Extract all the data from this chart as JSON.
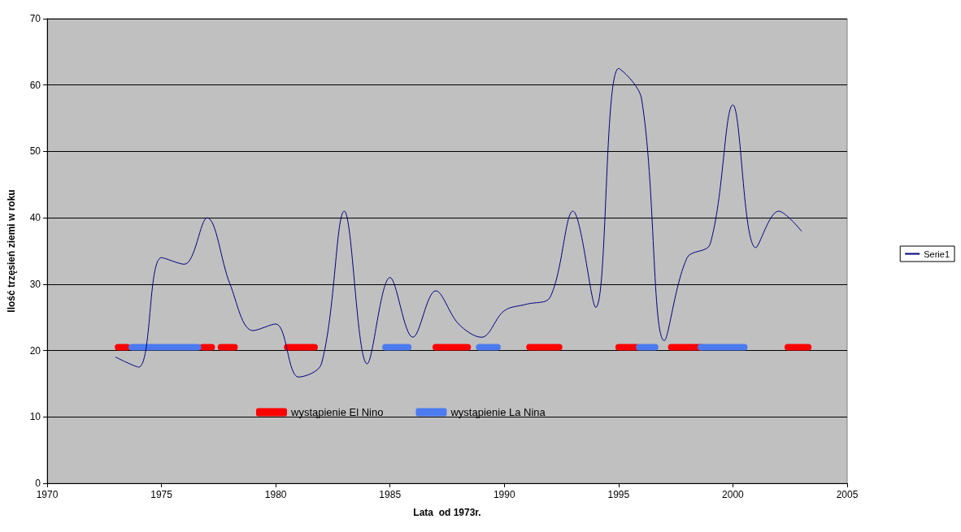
{
  "chart_data": {
    "type": "line",
    "xlabel": "Lata  od 1973r.",
    "ylabel": "Ilość trzęsień ziemi w roku",
    "xlim": [
      1970,
      2005
    ],
    "xticks": [
      1970,
      1975,
      1980,
      1985,
      1990,
      1995,
      2000,
      2005
    ],
    "ylim": [
      0,
      70
    ],
    "yticks": [
      0,
      10,
      20,
      30,
      40,
      50,
      60,
      70
    ],
    "grid": "y",
    "legend": "right",
    "marker": "none",
    "line_style": "solid",
    "x": [
      1973,
      1974,
      1975,
      1976,
      1977,
      1978,
      1979,
      1980,
      1981,
      1982,
      1983,
      1984,
      1985,
      1986,
      1987,
      1988,
      1989,
      1990,
      1991,
      1992,
      1993,
      1994,
      1995,
      1996,
      1997,
      1998,
      1999,
      2000,
      2001,
      2002,
      2003
    ],
    "series": [
      {
        "name": "Serie1",
        "color": "#000080",
        "values": [
          19,
          17.5,
          34,
          33,
          40,
          30,
          23,
          24,
          16,
          18,
          41,
          18,
          31,
          22,
          29,
          24,
          22,
          26,
          27,
          28,
          41,
          26.5,
          62.5,
          58,
          21.5,
          34,
          36,
          57,
          35.5,
          41,
          38
        ]
      },
      {
        "name": "wystąpienie El Nino",
        "color": "#ff0000",
        "x": [
          1973.1,
          1973.5,
          1975,
          1976.8,
          1977.2,
          1977.4,
          1977.6,
          1978.2,
          1979,
          1980.5,
          1981.7,
          1984,
          1987,
          1988.4,
          1990,
          1991.1,
          1992.4,
          1994,
          1995,
          1995.8,
          1996.5,
          1997.3,
          1998.6,
          2000,
          2002.4,
          2003.3
        ],
        "values": [
          20.5,
          20.5,
          null,
          20.5,
          20.5,
          null,
          20.5,
          20.5,
          null,
          20.5,
          20.5,
          null,
          20.5,
          20.5,
          null,
          20.5,
          20.5,
          null,
          20.5,
          20.5,
          null,
          20.5,
          20.5,
          null,
          20.5,
          20.5
        ]
      },
      {
        "name": "wystąpienie La Nina",
        "color": "#4b7bef",
        "x": [
          1973.7,
          1976.6,
          1980,
          1984.8,
          1985.8,
          1987,
          1988.9,
          1989.7,
          1993,
          1995.9,
          1996.6,
          1997.5,
          1998.6,
          2000.5
        ],
        "values": [
          20.5,
          20.5,
          null,
          20.5,
          20.5,
          null,
          20.5,
          20.5,
          null,
          20.5,
          20.5,
          null,
          20.5,
          20.5
        ]
      }
    ]
  }
}
